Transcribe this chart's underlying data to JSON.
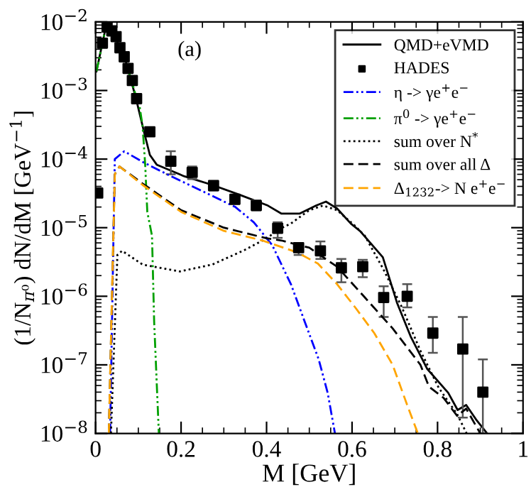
{
  "chart_data": {
    "type": "line",
    "xlabel": "M [GeV]",
    "ylabel": "(1/N$_{π⁰}$) dN/dM [GeV$^{−1}$]",
    "annotations": [
      "(a)"
    ],
    "log": "y",
    "xlim": [
      0,
      1
    ],
    "xticks": [
      0,
      0.2,
      0.4,
      0.6,
      0.8,
      1
    ],
    "ylim": [
      1e-08,
      0.01
    ],
    "yticks": [
      {
        "value": 1e-08,
        "label": "10$^{−8}$"
      },
      {
        "value": 1e-07,
        "label": "10$^{−7}$"
      },
      {
        "value": 1e-06,
        "label": "10$^{−6}$"
      },
      {
        "value": 1e-05,
        "label": "10$^{−5}$"
      },
      {
        "value": 0.0001,
        "label": "10$^{−4}$"
      },
      {
        "value": 0.001,
        "label": "10$^{−3}$"
      },
      {
        "value": 0.01,
        "label": "10$^{−2}$"
      }
    ],
    "grid": false,
    "legend": "top right",
    "series": [
      {
        "name": "QMD+eVMD",
        "color": "#000000",
        "line_style": "solid",
        "x": [
          0.002,
          0.023,
          0.045,
          0.071,
          0.094,
          0.114,
          0.127,
          0.143,
          0.208,
          0.273,
          0.338,
          0.403,
          0.435,
          0.477,
          0.516,
          0.539,
          0.565,
          0.597,
          0.619,
          0.672,
          0.705,
          0.737,
          0.776,
          0.825,
          0.847,
          0.867,
          0.89,
          0.916
        ],
        "values": [
          0.0019,
          0.0079,
          0.0062,
          0.0026,
          0.00079,
          0.00024,
          0.000115,
          8.3e-05,
          5.6e-05,
          4.2e-05,
          3e-05,
          2.1e-05,
          1.6e-05,
          1.6e-05,
          2.1e-05,
          2.4e-05,
          1.9e-05,
          1.15e-05,
          8.9e-06,
          3.7e-06,
          8.1e-07,
          2.6e-07,
          8.7e-08,
          3.9e-08,
          2.2e-08,
          2.6e-08,
          1.6e-08,
          1e-08
        ]
      },
      {
        "name": "HADES",
        "type": "scatter",
        "color": "#000000",
        "marker": "square",
        "x": [
          0.005,
          0.016,
          0.027,
          0.038,
          0.048,
          0.057,
          0.067,
          0.076,
          0.086,
          0.096,
          0.127,
          0.176,
          0.226,
          0.276,
          0.326,
          0.376,
          0.426,
          0.475,
          0.526,
          0.575,
          0.625,
          0.674,
          0.729,
          0.789,
          0.859,
          0.906
        ],
        "values": [
          3.2e-05,
          0.0049,
          0.0084,
          0.0074,
          0.0061,
          0.0042,
          0.0031,
          0.0021,
          0.0014,
          0.00076,
          0.00025,
          9.3e-05,
          6.4e-05,
          4.1e-05,
          2.6e-05,
          2.1e-05,
          9.8e-06,
          5.1e-06,
          4.6e-06,
          2.6e-06,
          2.7e-06,
          9.6e-07,
          1e-06,
          2.9e-07,
          1.7e-07,
          4e-08
        ],
        "errors": [
          null,
          null,
          null,
          null,
          null,
          null,
          null,
          null,
          null,
          null,
          null,
          [
            6e-05,
            0.00013
          ],
          [
            5.1e-05,
            7.8e-05
          ],
          [
            3.5e-05,
            4.8e-05
          ],
          [
            2.2e-05,
            3e-05
          ],
          [
            1.8e-05,
            2.5e-05
          ],
          [
            7.1e-06,
            1.2e-05
          ],
          [
            4e-06,
            5.8e-06
          ],
          [
            3.5e-06,
            6.3e-06
          ],
          [
            1.6e-06,
            3.5e-06
          ],
          [
            1.9e-06,
            3.4e-06
          ],
          [
            5e-07,
            1.4e-06
          ],
          [
            6.9e-07,
            1.5e-06
          ],
          [
            1.5e-07,
            5e-07
          ],
          [
            1.7e-08,
            5e-07
          ],
          [
            1e-08,
            1.2e-07
          ]
        ]
      },
      {
        "name": "η -> γe$^{+}$e$^{−}$",
        "color": "#0000ff",
        "line_style": "dashdot",
        "x": [
          0.034,
          0.045,
          0.067,
          0.11,
          0.165,
          0.219,
          0.273,
          0.327,
          0.37,
          0.413,
          0.457,
          0.489,
          0.522,
          0.543,
          0.56
        ],
        "values": [
          1e-08,
          0.0001,
          0.00013,
          9.1e-05,
          6.1e-05,
          4.2e-05,
          2.9e-05,
          2e-05,
          1.2e-05,
          5.6e-06,
          1.5e-06,
          4.3e-07,
          1.2e-07,
          3.9e-08,
          1e-08
        ]
      },
      {
        "name": "π$^{0}$ -> γe$^{+}$e$^{−}$",
        "color": "#00a000",
        "line_style": "dashdot",
        "x": [
          0.002,
          0.023,
          0.045,
          0.071,
          0.094,
          0.1,
          0.11,
          0.116,
          0.121,
          0.132,
          0.137,
          0.148
        ],
        "values": [
          0.0019,
          0.0079,
          0.0062,
          0.0026,
          0.00085,
          0.00078,
          0.0003,
          8.4e-05,
          1.7e-05,
          7.6e-06,
          4.3e-07,
          1e-08
        ]
      },
      {
        "name": "sum over N$^{*}$",
        "color": "#000000",
        "line_style": "dotted",
        "x": [
          0.036,
          0.051,
          0.062,
          0.11,
          0.197,
          0.273,
          0.348,
          0.4,
          0.43,
          0.457,
          0.5,
          0.532,
          0.565,
          0.608,
          0.63,
          0.673,
          0.717,
          0.76,
          0.803,
          0.846,
          0.868
        ],
        "values": [
          1e-08,
          4e-06,
          4.6e-06,
          2.9e-06,
          2.3e-06,
          2.9e-06,
          4.7e-06,
          7e-06,
          9.5e-06,
          1.15e-05,
          1.8e-05,
          2.1e-05,
          1.8e-05,
          1.05e-05,
          7.6e-06,
          2.5e-06,
          6.8e-07,
          1.6e-07,
          4.6e-08,
          1.9e-08,
          1e-08
        ]
      },
      {
        "name": "sum over all Δ",
        "color": "#000000",
        "line_style": "dashed",
        "x": [
          0.031,
          0.045,
          0.056,
          0.11,
          0.2,
          0.3,
          0.4,
          0.435,
          0.5,
          0.565,
          0.63,
          0.695,
          0.76,
          0.78,
          0.814,
          0.846,
          0.867,
          0.9
        ],
        "values": [
          1e-08,
          6e-05,
          7.8e-05,
          4.4e-05,
          1.8e-05,
          1e-05,
          7e-06,
          6.5e-06,
          5.1e-06,
          2.7e-06,
          9.6e-07,
          3.4e-07,
          1e-07,
          4.8e-08,
          3.3e-08,
          1.8e-08,
          2.3e-08,
          1e-08
        ]
      },
      {
        "name": "Δ$_{1232}$-> N e$^{+}$e$^{−}$",
        "color": "#ffa500",
        "line_style": "dashed",
        "x": [
          0.031,
          0.045,
          0.056,
          0.11,
          0.2,
          0.3,
          0.39,
          0.47,
          0.52,
          0.565,
          0.608,
          0.652,
          0.695,
          0.727,
          0.754
        ],
        "values": [
          1e-08,
          6e-05,
          7.8e-05,
          4.2e-05,
          1.7e-05,
          9e-06,
          6.5e-06,
          4.4e-06,
          3e-06,
          1.5e-06,
          6.8e-07,
          2.9e-07,
          1e-07,
          2.8e-08,
          1e-08
        ]
      }
    ]
  }
}
